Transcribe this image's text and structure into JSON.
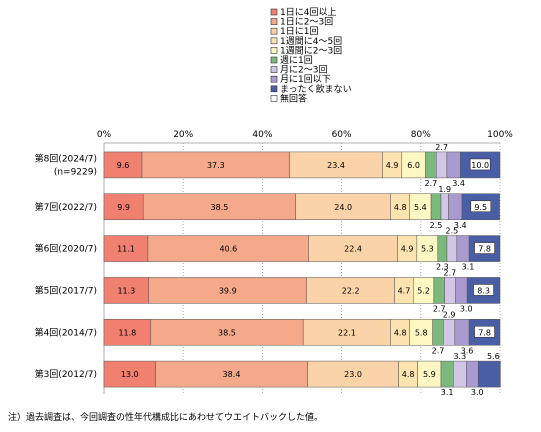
{
  "chart_data": {
    "type": "bar",
    "orientation": "horizontal",
    "stacked": true,
    "xlim": [
      0,
      100
    ],
    "x_ticks": [
      "0%",
      "20%",
      "40%",
      "60%",
      "80%",
      "100%"
    ],
    "legend_position": "top-right",
    "categories": [
      [
        "第8回(2024/7)",
        "(n=9229)"
      ],
      [
        "第7回(2022/7)"
      ],
      [
        "第6回(2020/7)"
      ],
      [
        "第5回(2017/7)"
      ],
      [
        "第4回(2014/7)"
      ],
      [
        "第3回(2012/7)"
      ]
    ],
    "series": [
      {
        "name": "1日に4回以上",
        "color": "#f08070",
        "values": [
          9.6,
          9.9,
          11.1,
          11.3,
          11.8,
          13.0
        ]
      },
      {
        "name": "1日に2～3回",
        "color": "#f4a98a",
        "values": [
          37.3,
          38.5,
          40.6,
          39.9,
          38.5,
          38.4
        ]
      },
      {
        "name": "1日に1回",
        "color": "#fbd3a8",
        "values": [
          23.4,
          24.0,
          22.4,
          22.2,
          22.1,
          23.0
        ]
      },
      {
        "name": "1週間に4～5回",
        "color": "#fce3b0",
        "values": [
          4.9,
          4.8,
          4.9,
          4.7,
          4.8,
          4.8
        ]
      },
      {
        "name": "1週間に2～3回",
        "color": "#fdf7c3",
        "values": [
          6.0,
          5.4,
          5.3,
          5.2,
          5.8,
          5.9
        ]
      },
      {
        "name": "週に1回",
        "color": "#7cb97c",
        "values": [
          2.7,
          2.5,
          2.3,
          2.7,
          2.7,
          3.1
        ]
      },
      {
        "name": "月に2～3回",
        "color": "#d2c6e6",
        "values": [
          2.7,
          1.9,
          2.5,
          2.7,
          2.9,
          3.3
        ]
      },
      {
        "name": "月に1回以下",
        "color": "#a99bd0",
        "values": [
          3.4,
          3.4,
          3.1,
          3.0,
          3.6,
          3.0
        ]
      },
      {
        "name": "まったく飲まない",
        "color": "#4a5ea6",
        "values": [
          10.0,
          9.5,
          7.8,
          8.3,
          7.8,
          5.6
        ]
      },
      {
        "name": "無回答",
        "color": "#ffffff",
        "values": [
          0,
          0,
          0,
          0,
          0,
          0
        ]
      }
    ],
    "data_labels": [
      [
        {
          "s": 0,
          "t": "9.6"
        },
        {
          "s": 1,
          "t": "37.3"
        },
        {
          "s": 2,
          "t": "23.4"
        },
        {
          "s": 3,
          "t": "4.9"
        },
        {
          "s": 4,
          "t": "6.0"
        },
        {
          "s": 8,
          "t": "10.0"
        }
      ],
      [
        {
          "s": 0,
          "t": "9.9"
        },
        {
          "s": 1,
          "t": "38.5"
        },
        {
          "s": 2,
          "t": "24.0"
        },
        {
          "s": 3,
          "t": "4.8"
        },
        {
          "s": 4,
          "t": "5.4"
        },
        {
          "s": 8,
          "t": "9.5"
        }
      ],
      [
        {
          "s": 0,
          "t": "11.1"
        },
        {
          "s": 1,
          "t": "40.6"
        },
        {
          "s": 2,
          "t": "22.4"
        },
        {
          "s": 3,
          "t": "4.9"
        },
        {
          "s": 4,
          "t": "5.3"
        },
        {
          "s": 8,
          "t": "7.8"
        }
      ],
      [
        {
          "s": 0,
          "t": "11.3"
        },
        {
          "s": 1,
          "t": "39.9"
        },
        {
          "s": 2,
          "t": "22.2"
        },
        {
          "s": 3,
          "t": "4.7"
        },
        {
          "s": 4,
          "t": "5.2"
        },
        {
          "s": 8,
          "t": "8.3"
        }
      ],
      [
        {
          "s": 0,
          "t": "11.8"
        },
        {
          "s": 1,
          "t": "38.5"
        },
        {
          "s": 2,
          "t": "22.1"
        },
        {
          "s": 3,
          "t": "4.8"
        },
        {
          "s": 4,
          "t": "5.8"
        },
        {
          "s": 8,
          "t": "7.8"
        }
      ],
      [
        {
          "s": 0,
          "t": "13.0"
        },
        {
          "s": 1,
          "t": "38.4"
        },
        {
          "s": 2,
          "t": "23.0"
        },
        {
          "s": 3,
          "t": "4.8"
        },
        {
          "s": 4,
          "t": "5.9"
        }
      ]
    ],
    "outside_labels": [
      [
        {
          "s": 5,
          "pos": "below",
          "t": "2.7"
        },
        {
          "s": 6,
          "pos": "above",
          "t": "2.7"
        },
        {
          "s": 7,
          "pos": "below",
          "t": "3.4"
        }
      ],
      [
        {
          "s": 5,
          "pos": "below",
          "t": "2.5"
        },
        {
          "s": 6,
          "pos": "above",
          "t": "1.9"
        },
        {
          "s": 7,
          "pos": "below",
          "t": "3.4"
        }
      ],
      [
        {
          "s": 5,
          "pos": "below",
          "t": "2.3"
        },
        {
          "s": 6,
          "pos": "above",
          "t": "2.5"
        },
        {
          "s": 7,
          "pos": "below",
          "t": "3.1"
        }
      ],
      [
        {
          "s": 5,
          "pos": "below",
          "t": "2.7"
        },
        {
          "s": 6,
          "pos": "above",
          "t": "2.7"
        },
        {
          "s": 7,
          "pos": "below",
          "t": "3.0"
        }
      ],
      [
        {
          "s": 5,
          "pos": "below",
          "t": "2.7"
        },
        {
          "s": 6,
          "pos": "above",
          "t": "2.9"
        },
        {
          "s": 7,
          "pos": "below",
          "t": "3.6"
        }
      ],
      [
        {
          "s": 5,
          "pos": "below",
          "t": "3.1"
        },
        {
          "s": 6,
          "pos": "above",
          "t": "3.3"
        },
        {
          "s": 7,
          "pos": "below",
          "t": "3.0"
        },
        {
          "s": 8,
          "pos": "above",
          "t": "5.6"
        }
      ]
    ]
  },
  "footnote": "注）過去調査は、今回調査の性年代構成比にあわせてウエイトバックした値。"
}
